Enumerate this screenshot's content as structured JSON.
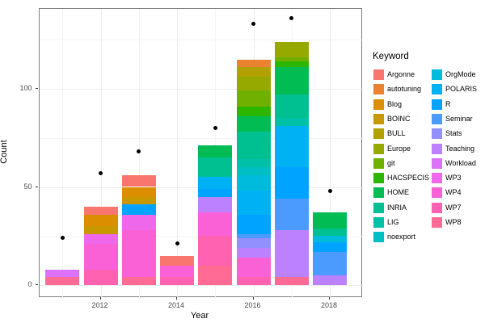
{
  "figure": {
    "background": "#FFFFFF",
    "panel_border_color": "#7F7F7F",
    "grid_major_color": "#EBEBEB",
    "grid_minor_color": "#F5F5F5",
    "tick_text_color": "#4D4D4D",
    "point_color": "#000000"
  },
  "axes": {
    "x": {
      "label": "Year",
      "tick_labels": [
        "2012",
        "2014",
        "2016",
        "2018"
      ],
      "tick_years": [
        2012,
        2014,
        2016,
        2018
      ],
      "minor_years": [
        2011,
        2013,
        2015,
        2017
      ]
    },
    "y": {
      "label": "Count",
      "tick_labels": [
        "0",
        "50",
        "100"
      ],
      "tick_values": [
        0,
        50,
        100
      ],
      "minor_values": [
        25,
        75,
        125
      ]
    }
  },
  "legend": {
    "title": "Keyword",
    "columns": [
      [
        "Argonne",
        "autotuning",
        "Blog",
        "BOINC",
        "BULL",
        "Europe",
        "git",
        "HACSPECIS",
        "HOME",
        "INRIA",
        "LIG",
        "noexport"
      ],
      [
        "OrgMode",
        "POLARIS",
        "R",
        "Seminar",
        "Stats",
        "Teaching",
        "Workload",
        "WP3",
        "WP4",
        "WP7",
        "WP8"
      ]
    ],
    "items": [
      {
        "label": "Argonne",
        "color": "#F8766D"
      },
      {
        "label": "autotuning",
        "color": "#EA8331"
      },
      {
        "label": "Blog",
        "color": "#DB8E00"
      },
      {
        "label": "BOINC",
        "color": "#C99800"
      },
      {
        "label": "BULL",
        "color": "#B2A100"
      },
      {
        "label": "Europe",
        "color": "#95A900"
      },
      {
        "label": "git",
        "color": "#6FB000"
      },
      {
        "label": "HACSPECIS",
        "color": "#2CB600"
      },
      {
        "label": "HOME",
        "color": "#00BC53"
      },
      {
        "label": "INRIA",
        "color": "#00C091"
      },
      {
        "label": "LIG",
        "color": "#00C1A7"
      },
      {
        "label": "noexport",
        "color": "#00BFC4"
      },
      {
        "label": "OrgMode",
        "color": "#00BBDB"
      },
      {
        "label": "POLARIS",
        "color": "#00B2F3"
      },
      {
        "label": "R",
        "color": "#00A3FF"
      },
      {
        "label": "Seminar",
        "color": "#4B9BFF"
      },
      {
        "label": "Stats",
        "color": "#9290FF"
      },
      {
        "label": "Teaching",
        "color": "#BC81FF"
      },
      {
        "label": "Workload",
        "color": "#DC71FA"
      },
      {
        "label": "WP3",
        "color": "#EF67EB"
      },
      {
        "label": "WP4",
        "color": "#FB61D7"
      },
      {
        "label": "WP7",
        "color": "#FF62B0"
      },
      {
        "label": "WP8",
        "color": "#FF6B94"
      }
    ]
  },
  "chart_data": {
    "type": "bar",
    "stacked": true,
    "title": "",
    "xlabel": "Year",
    "ylabel": "Count",
    "xlim": [
      2010.5,
      2018.5
    ],
    "ylim": [
      0,
      140
    ],
    "grid": true,
    "legend_position": "right",
    "years": [
      2011,
      2012,
      2013,
      2014,
      2015,
      2016,
      2017,
      2018
    ],
    "bars": [
      {
        "year": 2011,
        "total": 8,
        "segments": [
          {
            "keyword": "WP8",
            "value": 4
          },
          {
            "keyword": "Workload",
            "value": 4
          }
        ]
      },
      {
        "year": 2012,
        "total": 40,
        "segments": [
          {
            "keyword": "WP7",
            "value": 8
          },
          {
            "keyword": "WP4",
            "value": 13
          },
          {
            "keyword": "WP3",
            "value": 5
          },
          {
            "keyword": "BOINC",
            "value": 4
          },
          {
            "keyword": "Blog",
            "value": 6
          },
          {
            "keyword": "Argonne",
            "value": 4
          }
        ]
      },
      {
        "year": 2013,
        "total": 56,
        "segments": [
          {
            "keyword": "WP8",
            "value": 4
          },
          {
            "keyword": "WP4",
            "value": 24
          },
          {
            "keyword": "WP3",
            "value": 8
          },
          {
            "keyword": "R",
            "value": 5
          },
          {
            "keyword": "BOINC",
            "value": 4
          },
          {
            "keyword": "Blog",
            "value": 5
          },
          {
            "keyword": "Argonne",
            "value": 6
          }
        ]
      },
      {
        "year": 2014,
        "total": 15,
        "segments": [
          {
            "keyword": "WP7",
            "value": 4
          },
          {
            "keyword": "WP4",
            "value": 6
          },
          {
            "keyword": "Argonne",
            "value": 5
          }
        ]
      },
      {
        "year": 2015,
        "total": 71,
        "segments": [
          {
            "keyword": "WP8",
            "value": 10
          },
          {
            "keyword": "WP7",
            "value": 15
          },
          {
            "keyword": "WP4",
            "value": 12
          },
          {
            "keyword": "Teaching",
            "value": 8
          },
          {
            "keyword": "R",
            "value": 4
          },
          {
            "keyword": "POLARIS",
            "value": 6
          },
          {
            "keyword": "INRIA",
            "value": 10
          },
          {
            "keyword": "HOME",
            "value": 6
          }
        ]
      },
      {
        "year": 2016,
        "total": 115,
        "segments": [
          {
            "keyword": "WP7",
            "value": 4
          },
          {
            "keyword": "WP4",
            "value": 10
          },
          {
            "keyword": "Teaching",
            "value": 5
          },
          {
            "keyword": "Stats",
            "value": 5
          },
          {
            "keyword": "Seminar",
            "value": 2
          },
          {
            "keyword": "R",
            "value": 10
          },
          {
            "keyword": "POLARIS",
            "value": 12
          },
          {
            "keyword": "OrgMode",
            "value": 8
          },
          {
            "keyword": "noexport",
            "value": 4
          },
          {
            "keyword": "LIG",
            "value": 4
          },
          {
            "keyword": "INRIA",
            "value": 14
          },
          {
            "keyword": "HOME",
            "value": 8
          },
          {
            "keyword": "HACSPECIS",
            "value": 5
          },
          {
            "keyword": "git",
            "value": 8
          },
          {
            "keyword": "Europe",
            "value": 7
          },
          {
            "keyword": "BULL",
            "value": 5
          },
          {
            "keyword": "autotuning",
            "value": 4
          }
        ]
      },
      {
        "year": 2017,
        "total": 124,
        "segments": [
          {
            "keyword": "WP8",
            "value": 4
          },
          {
            "keyword": "Teaching",
            "value": 24
          },
          {
            "keyword": "Seminar",
            "value": 16
          },
          {
            "keyword": "R",
            "value": 16
          },
          {
            "keyword": "POLARIS",
            "value": 21
          },
          {
            "keyword": "LIG",
            "value": 4
          },
          {
            "keyword": "INRIA",
            "value": 12
          },
          {
            "keyword": "HOME",
            "value": 14
          },
          {
            "keyword": "HACSPECIS",
            "value": 3
          },
          {
            "keyword": "git",
            "value": 2
          },
          {
            "keyword": "Europe",
            "value": 8
          }
        ]
      },
      {
        "year": 2018,
        "total": 37,
        "segments": [
          {
            "keyword": "Teaching",
            "value": 5
          },
          {
            "keyword": "Seminar",
            "value": 12
          },
          {
            "keyword": "R",
            "value": 5
          },
          {
            "keyword": "OrgMode",
            "value": 3
          },
          {
            "keyword": "INRIA",
            "value": 4
          },
          {
            "keyword": "HOME",
            "value": 8
          }
        ]
      }
    ],
    "points": [
      {
        "year": 2011,
        "value": 24
      },
      {
        "year": 2012,
        "value": 57
      },
      {
        "year": 2013,
        "value": 68
      },
      {
        "year": 2014,
        "value": 21
      },
      {
        "year": 2015,
        "value": 80
      },
      {
        "year": 2016,
        "value": 133
      },
      {
        "year": 2017,
        "value": 136
      },
      {
        "year": 2018,
        "value": 48
      }
    ]
  }
}
